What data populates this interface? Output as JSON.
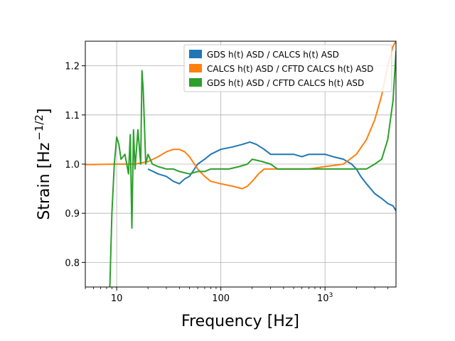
{
  "chart_data": {
    "type": "line",
    "xlabel": "Frequency [Hz]",
    "ylabel_main": "Strain [Hz",
    "ylabel_exp": "−1/2",
    "ylabel_close": "]",
    "xscale": "log",
    "xlim": [
      5,
      4800
    ],
    "ylim": [
      0.75,
      1.25
    ],
    "grid": true,
    "legend_position": "top-right",
    "x_ticks": [
      {
        "value": 10,
        "label": "10"
      },
      {
        "value": 100,
        "label": "100"
      },
      {
        "value": 1000,
        "label_base": "10",
        "label_exp": "3"
      }
    ],
    "y_ticks": [
      {
        "value": 0.8,
        "label": "0.8"
      },
      {
        "value": 0.9,
        "label": "0.9"
      },
      {
        "value": 1.0,
        "label": "1.0"
      },
      {
        "value": 1.1,
        "label": "1.1"
      },
      {
        "value": 1.2,
        "label": "1.2"
      }
    ],
    "series": [
      {
        "name": "GDS h(t) ASD / CALCS h(t) ASD",
        "color": "#1f77b4",
        "x": [
          20,
          25,
          30,
          35,
          40,
          45,
          50,
          60,
          70,
          80,
          100,
          130,
          160,
          190,
          220,
          260,
          300,
          350,
          400,
          500,
          600,
          700,
          800,
          1000,
          1200,
          1500,
          1800,
          2000,
          2200,
          2500,
          3000,
          3500,
          4000,
          4500,
          4800
        ],
        "y": [
          0.99,
          0.98,
          0.975,
          0.965,
          0.96,
          0.97,
          0.975,
          1.0,
          1.01,
          1.02,
          1.03,
          1.035,
          1.04,
          1.045,
          1.04,
          1.03,
          1.02,
          1.02,
          1.02,
          1.02,
          1.015,
          1.02,
          1.02,
          1.02,
          1.015,
          1.01,
          1.0,
          0.99,
          0.975,
          0.96,
          0.94,
          0.93,
          0.92,
          0.915,
          0.905
        ]
      },
      {
        "name": "CALCS h(t) ASD / CFTD CALCS h(t) ASD",
        "color": "#ff7f0e",
        "x": [
          5,
          10,
          15,
          20,
          25,
          30,
          35,
          40,
          45,
          50,
          60,
          70,
          80,
          100,
          130,
          160,
          180,
          200,
          230,
          260,
          300,
          350,
          400,
          500,
          700,
          1000,
          1500,
          2000,
          2500,
          3000,
          3500,
          4000,
          4500,
          4800
        ],
        "y": [
          0.999,
          1.0,
          1.0,
          1.005,
          1.015,
          1.025,
          1.03,
          1.03,
          1.025,
          1.015,
          0.99,
          0.975,
          0.965,
          0.96,
          0.955,
          0.95,
          0.955,
          0.965,
          0.98,
          0.99,
          0.99,
          0.99,
          0.99,
          0.99,
          0.99,
          0.995,
          1.0,
          1.02,
          1.05,
          1.09,
          1.14,
          1.2,
          1.24,
          1.25
        ]
      },
      {
        "name": "GDS h(t) ASD / CFTD CALCS h(t) ASD",
        "color": "#2ca02c",
        "x": [
          8.6,
          9.0,
          9.5,
          10.0,
          10.5,
          11.0,
          12.0,
          13.0,
          13.5,
          14.0,
          14.5,
          15.0,
          16.0,
          17.0,
          17.5,
          18.0,
          19.0,
          20.0,
          22.0,
          25.0,
          30.0,
          35.0,
          40.0,
          50.0,
          60.0,
          70.0,
          80.0,
          100.0,
          120.0,
          150.0,
          180.0,
          200.0,
          250.0,
          300.0,
          350.0,
          400.0,
          500.0,
          700.0,
          1000.0,
          1500.0,
          2000.0,
          2500.0,
          3000.0,
          3500.0,
          4000.0,
          4500.0,
          4800.0
        ],
        "y": [
          0.75,
          0.9,
          1.0,
          1.055,
          1.04,
          1.01,
          1.02,
          0.98,
          1.06,
          0.87,
          1.07,
          0.99,
          1.07,
          1.0,
          1.19,
          1.15,
          1.0,
          1.02,
          1.0,
          0.995,
          0.99,
          0.99,
          0.985,
          0.98,
          0.985,
          0.985,
          0.99,
          0.99,
          0.99,
          0.995,
          1.0,
          1.01,
          1.005,
          1.0,
          0.99,
          0.99,
          0.99,
          0.99,
          0.99,
          0.99,
          0.99,
          0.99,
          1.0,
          1.01,
          1.05,
          1.13,
          1.23
        ]
      }
    ]
  }
}
